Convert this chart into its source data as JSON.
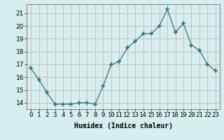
{
  "x": [
    0,
    1,
    2,
    3,
    4,
    5,
    6,
    7,
    8,
    9,
    10,
    11,
    12,
    13,
    14,
    15,
    16,
    17,
    18,
    19,
    20,
    21,
    22,
    23
  ],
  "y": [
    16.7,
    15.8,
    14.8,
    13.9,
    13.9,
    13.9,
    14.0,
    14.0,
    13.9,
    15.3,
    17.0,
    17.2,
    18.3,
    18.8,
    19.4,
    19.4,
    20.0,
    21.3,
    19.5,
    20.2,
    18.5,
    18.1,
    17.0,
    16.5
  ],
  "xlabel": "Humidex (Indice chaleur)",
  "ylim": [
    13.5,
    21.7
  ],
  "xlim": [
    -0.5,
    23.5
  ],
  "yticks": [
    14,
    15,
    16,
    17,
    18,
    19,
    20,
    21
  ],
  "xtick_labels": [
    "0",
    "1",
    "2",
    "3",
    "4",
    "5",
    "6",
    "7",
    "8",
    "9",
    "10",
    "11",
    "12",
    "13",
    "14",
    "15",
    "16",
    "17",
    "18",
    "19",
    "20",
    "21",
    "22",
    "23"
  ],
  "line_color": "#2d7a6a",
  "marker_color": "#2d7a6a",
  "bg_color": "#d6eeee",
  "grid_color": "#c8b8b8",
  "label_fontsize": 7,
  "tick_fontsize": 6.5
}
